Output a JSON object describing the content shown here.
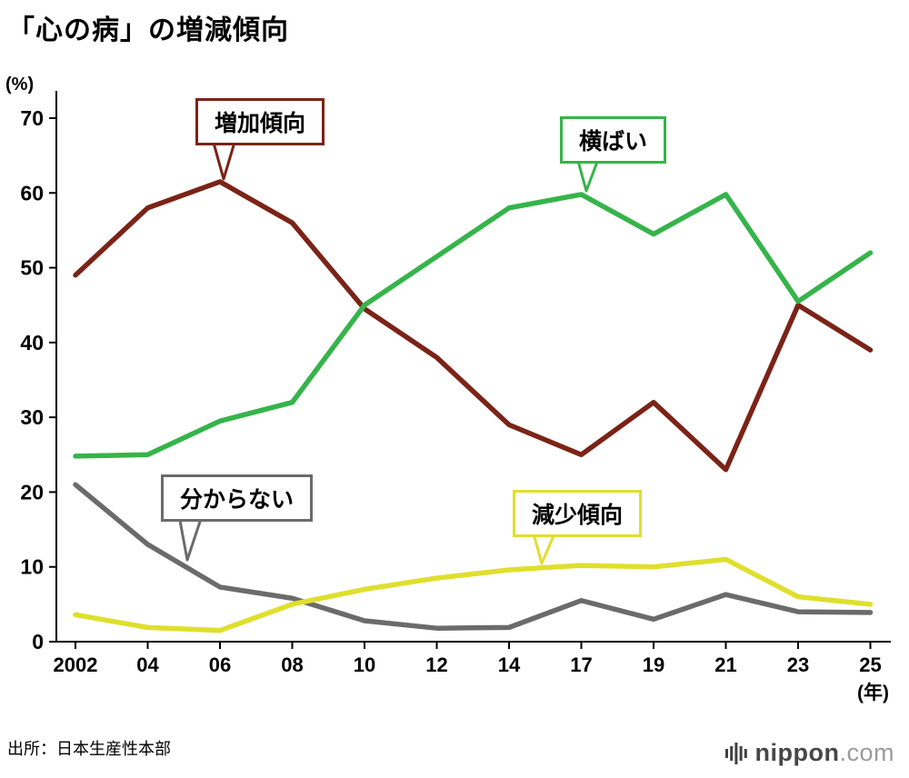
{
  "page": {
    "title": "「心の病」の増減傾向"
  },
  "source": "出所：日本生産性本部",
  "logo": {
    "brand": "nippon",
    "tld": ".com"
  },
  "chart_data": {
    "type": "line",
    "title": "「心の病」の増減傾向",
    "unit_label": "(%)",
    "x_axis_suffix": "(年)",
    "categories": [
      "2002",
      "04",
      "06",
      "08",
      "10",
      "12",
      "14",
      "17",
      "19",
      "21",
      "23",
      "25"
    ],
    "ylim": [
      0,
      70
    ],
    "yticks": [
      0,
      10,
      20,
      30,
      40,
      50,
      60,
      70
    ],
    "grid": false,
    "legend": "callout-labels-on-chart",
    "series": [
      {
        "name": "増加傾向",
        "color": "#7b2317",
        "values": [
          49,
          58,
          61.5,
          56,
          44.5,
          38,
          29,
          25,
          32,
          23,
          45,
          39
        ]
      },
      {
        "name": "横ばい",
        "color": "#35b44a",
        "values": [
          24.8,
          25,
          29.5,
          32,
          45,
          51.5,
          58,
          59.8,
          54.5,
          59.8,
          45.5,
          52
        ]
      },
      {
        "name": "分からない",
        "color": "#6b6b6b",
        "values": [
          21,
          13,
          7.3,
          5.8,
          2.8,
          1.8,
          1.9,
          5.5,
          3,
          6.3,
          4,
          3.9
        ]
      },
      {
        "name": "減少傾向",
        "color": "#dfdf2e",
        "values": [
          3.6,
          1.9,
          1.5,
          5,
          7,
          8.5,
          9.6,
          10.2,
          10,
          11,
          6,
          5
        ]
      }
    ]
  }
}
